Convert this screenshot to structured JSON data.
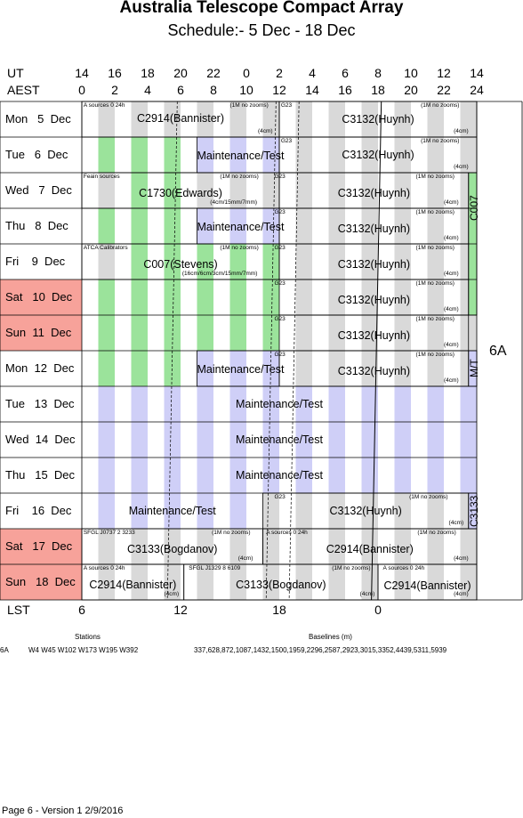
{
  "header": {
    "title": "Australia Telescope Compact Array",
    "subtitle": "Schedule:- 5  Dec - 18 Dec"
  },
  "axis": {
    "ut_label": "UT",
    "aest_label": "AEST",
    "lst_label": "LST",
    "ut_ticks": [
      "14",
      "16",
      "18",
      "20",
      "22",
      "0",
      "2",
      "4",
      "6",
      "8",
      "10",
      "12",
      "14"
    ],
    "aest_ticks": [
      "0",
      "2",
      "4",
      "6",
      "8",
      "10",
      "12",
      "14",
      "16",
      "18",
      "20",
      "22",
      "24"
    ],
    "lst_ticks": [
      "6",
      "12",
      "18",
      "0"
    ]
  },
  "days": [
    {
      "label": "Mon   5  Dec",
      "weekend": false
    },
    {
      "label": "Tue   6  Dec",
      "weekend": false
    },
    {
      "label": "Wed   7  Dec",
      "weekend": false
    },
    {
      "label": "Thu   8  Dec",
      "weekend": false
    },
    {
      "label": "Fri    9  Dec",
      "weekend": false
    },
    {
      "label": "Sat   10  Dec",
      "weekend": true
    },
    {
      "label": "Sun  11  Dec",
      "weekend": true
    },
    {
      "label": "Mon  12  Dec",
      "weekend": false
    },
    {
      "label": "Tue   13  Dec",
      "weekend": false
    },
    {
      "label": "Wed  14  Dec",
      "weekend": false
    },
    {
      "label": "Thu   15  Dec",
      "weekend": false
    },
    {
      "label": "Fri    16  Dec",
      "weekend": false
    },
    {
      "label": "Sat   17  Dec",
      "weekend": true
    },
    {
      "label": "Sun   18  Dec",
      "weekend": true
    }
  ],
  "blocks": {
    "r0_obs": "C2914(Bannister)",
    "r0_src": "A  sources 0 24h",
    "r0_zoom": "(1M no zooms)",
    "r0_cm": "(4cm)",
    "r0_g": "G23",
    "r0_obs2": "C3132(Huynh)",
    "r0_zoom2": "(1M no zooms)",
    "r0_cm2": "(4cm)",
    "r1_maint": "Maintenance/Test",
    "r1_g": "G23",
    "r1_obs": "C3132(Huynh)",
    "r1_zoom": "(1M no zooms)",
    "r1_cm": "(4cm)",
    "r2_src": "Feain sources",
    "r2_obs": "C1730(Edwards)",
    "r2_zoom": "(1M no zooms)",
    "r2_cm": "(4cm/15mm/7mm)",
    "r2_g": "G23",
    "r2_obs2": "C3132(Huynh)",
    "r2_zoom2": "(1M no zooms)",
    "r2_cm2": "(4cm)",
    "r3_maint": "Maintenance/Test",
    "r3_g": "G23",
    "r3_obs": "C3132(Huynh)",
    "r3_zoom": "(1M no zooms)",
    "r3_cm": "(4cm)",
    "r4_src": "ATCA Calibrators",
    "r4_obs": "C007(Stevens)",
    "r4_zoom": "(1M no zooms)",
    "r4_cm": "(16cm/6cm/3cm/15mm/7mm)",
    "r4_g": "G23",
    "r4_obs2": "C3132(Huynh)",
    "r4_zoom2": "(1M no zooms)",
    "r4_cm2": "(4cm)",
    "r5_g": "G23",
    "r5_obs": "C3132(Huynh)",
    "r5_zoom": "(1M no zooms)",
    "r5_cm": "(4cm)",
    "r6_g": "G23",
    "r6_obs": "C3132(Huynh)",
    "r6_zoom": "(1M no zooms)",
    "r6_cm": "(4cm)",
    "r7_maint": "Maintenance/Test",
    "r7_g": "G23",
    "r7_obs": "C3132(Huynh)",
    "r7_zoom": "(1M no zooms)",
    "r7_cm": "(4cm)",
    "r8_maint": "Maintenance/Test",
    "r9_maint": "Maintenance/Test",
    "r10_maint": "Maintenance/Test",
    "r11_maint": "Maintenance/Test",
    "r11_g": "G23",
    "r11_obs": "C3132(Huynh)",
    "r11_zoom": "(1M no zooms)",
    "r11_cm": "(4cm)",
    "r12_src": "SFGL J0737 2 3233",
    "r12_obs": "C3133(Bogdanov)",
    "r12_zoom": "(1M no zooms)",
    "r12_cm": "(4cm)",
    "r12_src2": "A  sources 0 24h",
    "r12_obs2": "C2914(Bannister)",
    "r12_zoom2": "(1M no zooms)",
    "r12_cm2": "(4cm)",
    "r13_src": "A  sources 0 24h",
    "r13_obs": "C2914(Bannister)",
    "r13_cm": "(4cm)",
    "r13_src2": "SFGL J1329 8 6109",
    "r13_obs2": "C3133(Bogdanov)",
    "r13_zoom2": "(1M no zooms)",
    "r13_cm2": "(4cm)",
    "r13_src3": "A  sources 0 24h",
    "r13_obs3": "C2914(Bannister)",
    "r13_cm3": "(4cm)",
    "v_c007": "C007",
    "v_mt": "M/T",
    "v_c3133": "C3133"
  },
  "config": "6A",
  "footer": {
    "stations_head": "Stations",
    "baselines_head": "Baselines (m)",
    "config": "6A",
    "stations": "W4  W45  W102  W173  W195  W392",
    "baselines": "337,628,872,1087,1432,1500,1959,2296,2587,2923,3015,3352,4439,5311,5939",
    "page": "Page 6 - Version 1  2/9/2016"
  },
  "colors": {
    "grey": "#d9d9d9",
    "green": "#9be39b",
    "lavender": "#cfcff7",
    "weekend": "#f7a29a"
  }
}
